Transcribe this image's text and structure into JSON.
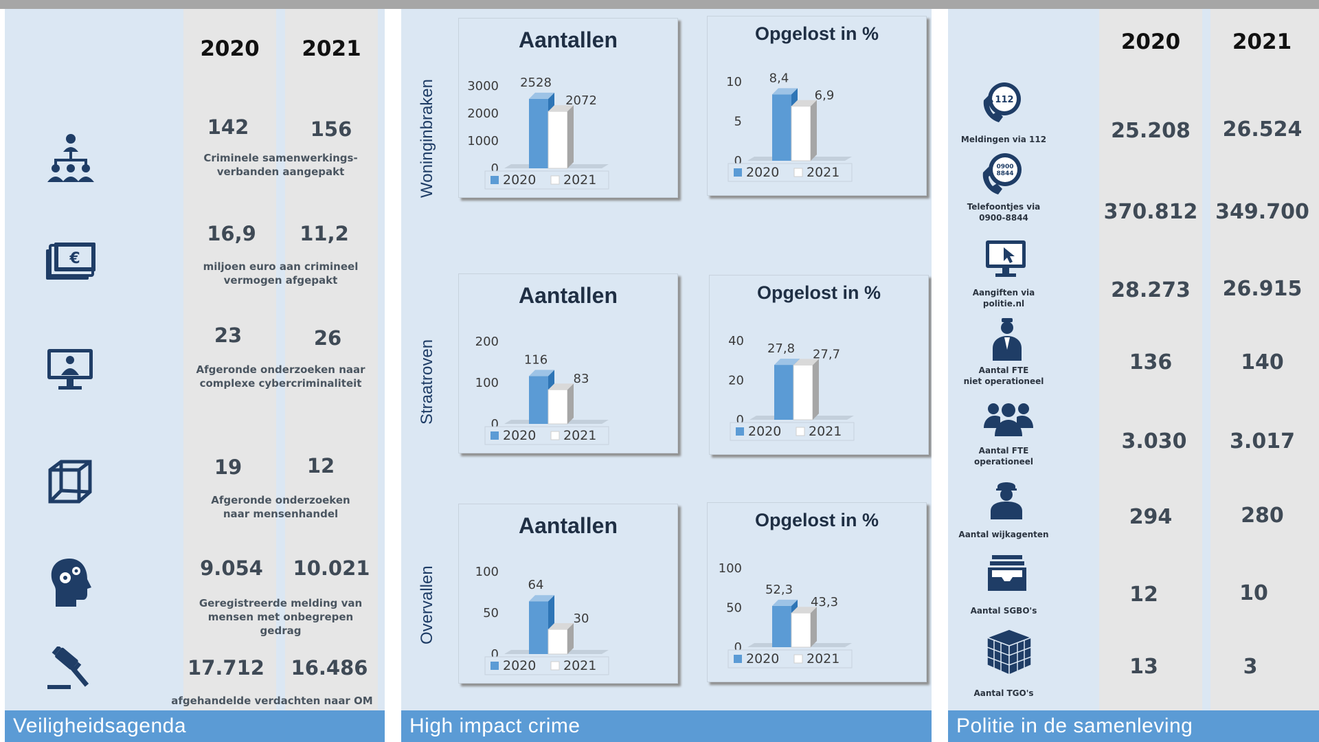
{
  "colors": {
    "navy": "#1f3d66",
    "bar2020": "#5b9bd5",
    "bar2021": "#ffffff",
    "footer": "#5b9bd5"
  },
  "veiligheidsagenda": {
    "footer": "Veiligheidsagenda",
    "years": [
      "2020",
      "2021"
    ],
    "rows": [
      {
        "icon": "network-people-icon",
        "v2020": "142",
        "v2021": "156",
        "desc": "Criminele samenwerkings-\nverbanden aangepakt"
      },
      {
        "icon": "euro-banknotes-icon",
        "v2020": "16,9",
        "v2021": "11,2",
        "desc": "miljoen euro aan crimineel\nvermogen afgepakt"
      },
      {
        "icon": "computer-hacker-icon",
        "v2020": "23",
        "v2021": "26",
        "desc": "Afgeronde onderzoeken naar\ncomplexe cybercriminaliteit"
      },
      {
        "icon": "cage-box-icon",
        "v2020": "19",
        "v2021": "12",
        "desc": "Afgeronde onderzoeken\nnaar mensenhandel"
      },
      {
        "icon": "head-gears-icon",
        "v2020": "9.054",
        "v2021": "10.021",
        "desc": "Geregistreerde melding van\nmensen met onbegrepen\ngedrag"
      },
      {
        "icon": "judge-gavel-icon",
        "v2020": "17.712",
        "v2021": "16.486",
        "desc": "afgehandelde verdachten naar OM"
      }
    ]
  },
  "high_impact_crime": {
    "footer": "High impact crime",
    "rows": [
      {
        "label": "Woninginbraken"
      },
      {
        "label": "Straatroven"
      },
      {
        "label": "Overvallen"
      }
    ]
  },
  "chart_data": [
    {
      "type": "bar",
      "title": "Aantallen",
      "categories": [
        "2020",
        "2021"
      ],
      "values": [
        2528,
        2072
      ],
      "value_labels": [
        "2528",
        "2072"
      ],
      "yticks": [
        "0",
        "1000",
        "2000",
        "3000"
      ],
      "ylim": [
        0,
        3000
      ],
      "legend": [
        "2020",
        "2021"
      ]
    },
    {
      "type": "bar",
      "title": "Opgelost in %",
      "categories": [
        "2020",
        "2021"
      ],
      "values": [
        8.4,
        6.9
      ],
      "value_labels": [
        "8,4",
        "6,9"
      ],
      "yticks": [
        "0",
        "5",
        "10"
      ],
      "ylim": [
        0,
        10
      ],
      "legend": [
        "2020",
        "2021"
      ]
    },
    {
      "type": "bar",
      "title": "Aantallen",
      "categories": [
        "2020",
        "2021"
      ],
      "values": [
        116,
        83
      ],
      "value_labels": [
        "116",
        "83"
      ],
      "yticks": [
        "0",
        "100",
        "200"
      ],
      "ylim": [
        0,
        200
      ],
      "legend": [
        "2020",
        "2021"
      ]
    },
    {
      "type": "bar",
      "title": "Opgelost in %",
      "categories": [
        "2020",
        "2021"
      ],
      "values": [
        27.8,
        27.7
      ],
      "value_labels": [
        "27,8",
        "27,7"
      ],
      "yticks": [
        "0",
        "20",
        "40"
      ],
      "ylim": [
        0,
        40
      ],
      "legend": [
        "2020",
        "2021"
      ]
    },
    {
      "type": "bar",
      "title": "Aantallen",
      "categories": [
        "2020",
        "2021"
      ],
      "values": [
        64,
        30
      ],
      "value_labels": [
        "64",
        "30"
      ],
      "yticks": [
        "0",
        "50",
        "100"
      ],
      "ylim": [
        0,
        100
      ],
      "legend": [
        "2020",
        "2021"
      ]
    },
    {
      "type": "bar",
      "title": "Opgelost in %",
      "categories": [
        "2020",
        "2021"
      ],
      "values": [
        52.3,
        43.3
      ],
      "value_labels": [
        "52,3",
        "43,3"
      ],
      "yticks": [
        "0",
        "50",
        "100"
      ],
      "ylim": [
        0,
        100
      ],
      "legend": [
        "2020",
        "2021"
      ]
    }
  ],
  "politie": {
    "footer": "Politie in de samenleving",
    "years": [
      "2020",
      "2021"
    ],
    "rows": [
      {
        "icon": "phone-112-icon",
        "label": "Meldingen via 112",
        "v2020": "25.208",
        "v2021": "26.524"
      },
      {
        "icon": "phone-0900-icon",
        "label": "Telefoontjes via\n0900-8844",
        "v2020": "370.812",
        "v2021": "349.700"
      },
      {
        "icon": "monitor-cursor-icon",
        "label": "Aangiften via\npolitie.nl",
        "v2020": "28.273",
        "v2021": "26.915"
      },
      {
        "icon": "officer-icon",
        "label": "Aantal FTE\nniet operationeel",
        "v2020": "136",
        "v2021": "140"
      },
      {
        "icon": "team-icon",
        "label": "Aantal FTE\noperationeel",
        "v2020": "3.030",
        "v2021": "3.017"
      },
      {
        "icon": "agent-icon",
        "label": "Aantal wijkagenten",
        "v2020": "294",
        "v2021": "280"
      },
      {
        "icon": "inbox-tray-icon",
        "label": "Aantal SGBO's",
        "v2020": "12",
        "v2021": "10"
      },
      {
        "icon": "cube-stack-icon",
        "label": "Aantal TGO's",
        "v2020": "13",
        "v2021": "3"
      }
    ]
  }
}
